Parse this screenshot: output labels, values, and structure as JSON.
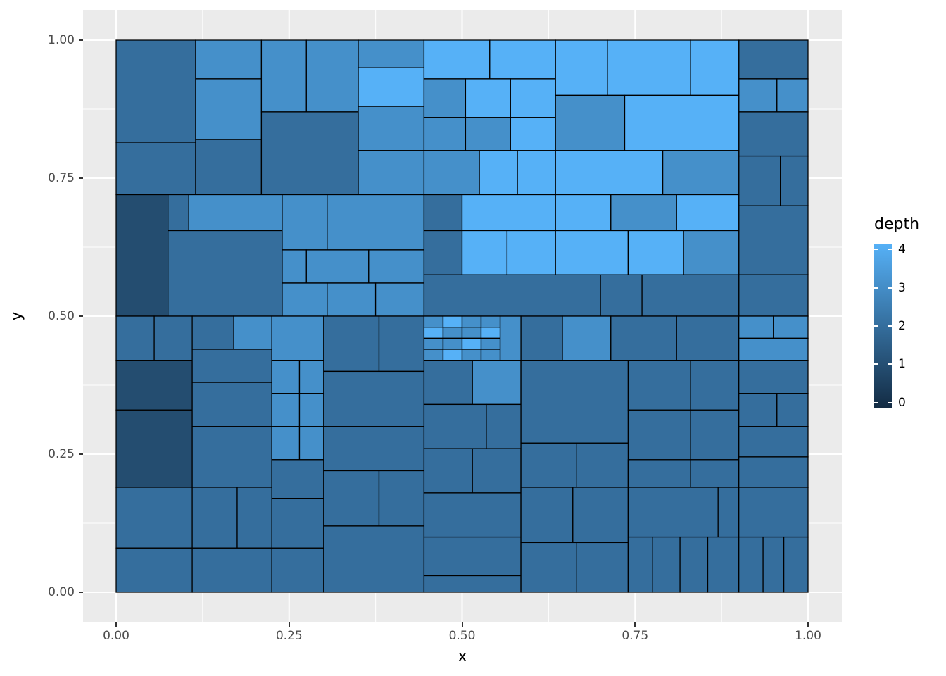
{
  "axes": {
    "x": {
      "title": "x",
      "tick_labels": [
        "0.00",
        "0.25",
        "0.50",
        "0.75",
        "1.00"
      ],
      "tick_values": [
        0,
        0.25,
        0.5,
        0.75,
        1
      ]
    },
    "y": {
      "title": "y",
      "tick_labels": [
        "0.00",
        "0.25",
        "0.50",
        "0.75",
        "1.00"
      ],
      "tick_values": [
        0,
        0.25,
        0.5,
        0.75,
        1
      ]
    }
  },
  "legend": {
    "title": "depth",
    "tick_labels": [
      "4",
      "3",
      "2",
      "1",
      "0"
    ],
    "tick_values": [
      4,
      3,
      2,
      1,
      0
    ]
  },
  "chart_data": {
    "type": "rect-partition",
    "description": "Recursive spatial partition (treemap-style) of the unit square; rectangles filled by continuous 'depth' value",
    "title": "",
    "xlabel": "x",
    "ylabel": "y",
    "x_range": [
      0,
      1
    ],
    "y_range": [
      0,
      1
    ],
    "fill_variable": "depth",
    "fill_scale": {
      "type": "gradient",
      "domain": [
        0,
        4
      ],
      "low": "#132B43",
      "high": "#56B1F7"
    },
    "layout": {
      "panel_bg": "#EBEBEB",
      "grid_major": "#FFFFFF",
      "grid_minor": "#FFFFFF",
      "grid": "on",
      "legend_position": "right",
      "rect_border": "#000000"
    },
    "minor_gridlines": [
      0.125,
      0.375,
      0.625,
      0.875
    ],
    "rect_format": [
      "x",
      "y",
      "width",
      "height",
      "depth"
    ],
    "rects": [
      [
        0,
        0.815,
        0.115,
        0.185,
        2
      ],
      [
        0,
        0.72,
        0.115,
        0.095,
        2
      ],
      [
        0.115,
        0.93,
        0.095,
        0.07,
        3
      ],
      [
        0.115,
        0.82,
        0.095,
        0.11,
        3
      ],
      [
        0.115,
        0.72,
        0.095,
        0.1,
        2
      ],
      [
        0.21,
        0.87,
        0.065,
        0.13,
        3
      ],
      [
        0.275,
        0.87,
        0.075,
        0.13,
        3
      ],
      [
        0.21,
        0.72,
        0.14,
        0.15,
        2
      ],
      [
        0.35,
        0.95,
        0.095,
        0.05,
        3
      ],
      [
        0.35,
        0.88,
        0.095,
        0.07,
        4
      ],
      [
        0.35,
        0.8,
        0.095,
        0.08,
        3
      ],
      [
        0.35,
        0.72,
        0.095,
        0.08,
        3
      ],
      [
        0,
        0.5,
        0.075,
        0.22,
        1
      ],
      [
        0.075,
        0.655,
        0.03,
        0.065,
        2
      ],
      [
        0.105,
        0.655,
        0.135,
        0.065,
        3
      ],
      [
        0.075,
        0.5,
        0.165,
        0.155,
        2
      ],
      [
        0.24,
        0.62,
        0.065,
        0.1,
        3
      ],
      [
        0.305,
        0.62,
        0.14,
        0.1,
        3
      ],
      [
        0.24,
        0.56,
        0.035,
        0.06,
        3
      ],
      [
        0.275,
        0.56,
        0.09,
        0.06,
        3
      ],
      [
        0.365,
        0.56,
        0.08,
        0.06,
        3
      ],
      [
        0.24,
        0.5,
        0.065,
        0.06,
        3
      ],
      [
        0.305,
        0.5,
        0.07,
        0.06,
        3
      ],
      [
        0.375,
        0.5,
        0.07,
        0.06,
        3
      ],
      [
        0.9,
        0.93,
        0.1,
        0.07,
        2
      ],
      [
        0.9,
        0.87,
        0.055,
        0.06,
        3
      ],
      [
        0.955,
        0.87,
        0.045,
        0.06,
        3
      ],
      [
        0.9,
        0.79,
        0.1,
        0.08,
        2
      ],
      [
        0.9,
        0.7,
        0.06,
        0.09,
        2
      ],
      [
        0.96,
        0.7,
        0.04,
        0.09,
        2
      ],
      [
        0.9,
        0.575,
        0.1,
        0.125,
        2
      ],
      [
        0.9,
        0.5,
        0.1,
        0.075,
        2
      ],
      [
        0.445,
        0.5,
        0.255,
        0.075,
        2
      ],
      [
        0.7,
        0.5,
        0.06,
        0.075,
        2
      ],
      [
        0.76,
        0.5,
        0.14,
        0.075,
        2
      ],
      [
        0.445,
        0.93,
        0.095,
        0.07,
        4
      ],
      [
        0.54,
        0.93,
        0.095,
        0.07,
        4
      ],
      [
        0.445,
        0.86,
        0.06,
        0.07,
        3
      ],
      [
        0.505,
        0.86,
        0.065,
        0.07,
        4
      ],
      [
        0.57,
        0.86,
        0.065,
        0.07,
        4
      ],
      [
        0.445,
        0.8,
        0.06,
        0.06,
        3
      ],
      [
        0.505,
        0.8,
        0.065,
        0.06,
        3
      ],
      [
        0.57,
        0.8,
        0.065,
        0.06,
        4
      ],
      [
        0.445,
        0.72,
        0.08,
        0.08,
        3
      ],
      [
        0.525,
        0.72,
        0.055,
        0.08,
        4
      ],
      [
        0.58,
        0.72,
        0.055,
        0.08,
        4
      ],
      [
        0.445,
        0.655,
        0.055,
        0.065,
        2
      ],
      [
        0.5,
        0.655,
        0.135,
        0.065,
        4
      ],
      [
        0.445,
        0.575,
        0.055,
        0.08,
        2
      ],
      [
        0.5,
        0.575,
        0.065,
        0.08,
        4
      ],
      [
        0.565,
        0.575,
        0.07,
        0.08,
        4
      ],
      [
        0.635,
        0.9,
        0.075,
        0.1,
        4
      ],
      [
        0.71,
        0.9,
        0.12,
        0.1,
        4
      ],
      [
        0.83,
        0.9,
        0.07,
        0.1,
        4
      ],
      [
        0.635,
        0.8,
        0.1,
        0.1,
        3
      ],
      [
        0.735,
        0.8,
        0.165,
        0.1,
        4
      ],
      [
        0.635,
        0.72,
        0.155,
        0.08,
        4
      ],
      [
        0.79,
        0.72,
        0.11,
        0.08,
        3
      ],
      [
        0.635,
        0.655,
        0.08,
        0.065,
        4
      ],
      [
        0.715,
        0.655,
        0.095,
        0.065,
        3
      ],
      [
        0.81,
        0.655,
        0.09,
        0.065,
        4
      ],
      [
        0.635,
        0.575,
        0.105,
        0.08,
        4
      ],
      [
        0.74,
        0.575,
        0.08,
        0.08,
        4
      ],
      [
        0.82,
        0.575,
        0.08,
        0.08,
        3
      ],
      [
        0,
        0.42,
        0.055,
        0.08,
        2
      ],
      [
        0.055,
        0.42,
        0.055,
        0.08,
        2
      ],
      [
        0,
        0.33,
        0.11,
        0.09,
        1
      ],
      [
        0,
        0.19,
        0.11,
        0.14,
        1
      ],
      [
        0,
        0.08,
        0.11,
        0.11,
        2
      ],
      [
        0,
        0,
        0.11,
        0.08,
        2
      ],
      [
        0.11,
        0.44,
        0.06,
        0.06,
        2
      ],
      [
        0.17,
        0.44,
        0.055,
        0.06,
        3
      ],
      [
        0.11,
        0.38,
        0.115,
        0.06,
        2
      ],
      [
        0.11,
        0.3,
        0.115,
        0.08,
        2
      ],
      [
        0.11,
        0.19,
        0.115,
        0.11,
        2
      ],
      [
        0.11,
        0.08,
        0.065,
        0.11,
        2
      ],
      [
        0.175,
        0.08,
        0.05,
        0.11,
        2
      ],
      [
        0.11,
        0,
        0.115,
        0.08,
        2
      ],
      [
        0.225,
        0.42,
        0.075,
        0.08,
        3
      ],
      [
        0.225,
        0.36,
        0.04,
        0.06,
        3
      ],
      [
        0.265,
        0.36,
        0.035,
        0.06,
        3
      ],
      [
        0.225,
        0.3,
        0.04,
        0.06,
        3
      ],
      [
        0.265,
        0.3,
        0.035,
        0.06,
        3
      ],
      [
        0.225,
        0.24,
        0.04,
        0.06,
        3
      ],
      [
        0.265,
        0.24,
        0.035,
        0.06,
        3
      ],
      [
        0.225,
        0.17,
        0.075,
        0.07,
        2
      ],
      [
        0.225,
        0.08,
        0.075,
        0.09,
        2
      ],
      [
        0.225,
        0,
        0.075,
        0.08,
        2
      ],
      [
        0.3,
        0.4,
        0.08,
        0.1,
        2
      ],
      [
        0.38,
        0.4,
        0.065,
        0.1,
        2
      ],
      [
        0.3,
        0.3,
        0.145,
        0.1,
        2
      ],
      [
        0.3,
        0.22,
        0.145,
        0.08,
        2
      ],
      [
        0.3,
        0.12,
        0.08,
        0.1,
        2
      ],
      [
        0.38,
        0.12,
        0.065,
        0.1,
        2
      ],
      [
        0.3,
        0,
        0.145,
        0.12,
        2
      ],
      [
        0.445,
        0.48,
        0.0275,
        0.02,
        3
      ],
      [
        0.4725,
        0.48,
        0.0275,
        0.02,
        4
      ],
      [
        0.5,
        0.48,
        0.0275,
        0.02,
        3
      ],
      [
        0.5275,
        0.48,
        0.0275,
        0.02,
        3
      ],
      [
        0.445,
        0.46,
        0.0275,
        0.02,
        4
      ],
      [
        0.4725,
        0.46,
        0.0275,
        0.02,
        3
      ],
      [
        0.5,
        0.46,
        0.0275,
        0.02,
        3
      ],
      [
        0.5275,
        0.46,
        0.0275,
        0.02,
        4
      ],
      [
        0.445,
        0.44,
        0.0275,
        0.02,
        3
      ],
      [
        0.4725,
        0.44,
        0.0275,
        0.02,
        3
      ],
      [
        0.5,
        0.44,
        0.0275,
        0.02,
        4
      ],
      [
        0.5275,
        0.44,
        0.0275,
        0.02,
        3
      ],
      [
        0.445,
        0.42,
        0.0275,
        0.02,
        3
      ],
      [
        0.4725,
        0.42,
        0.0275,
        0.02,
        4
      ],
      [
        0.5,
        0.42,
        0.0275,
        0.02,
        3
      ],
      [
        0.5275,
        0.42,
        0.0275,
        0.02,
        3
      ],
      [
        0.555,
        0.42,
        0.03,
        0.08,
        3
      ],
      [
        0.445,
        0.34,
        0.07,
        0.08,
        2
      ],
      [
        0.515,
        0.34,
        0.07,
        0.08,
        3
      ],
      [
        0.445,
        0.26,
        0.09,
        0.08,
        2
      ],
      [
        0.535,
        0.26,
        0.05,
        0.08,
        2
      ],
      [
        0.445,
        0.18,
        0.07,
        0.08,
        2
      ],
      [
        0.515,
        0.18,
        0.07,
        0.08,
        2
      ],
      [
        0.445,
        0.1,
        0.14,
        0.08,
        2
      ],
      [
        0.445,
        0.03,
        0.14,
        0.07,
        2
      ],
      [
        0.445,
        0,
        0.14,
        0.03,
        2
      ],
      [
        0.585,
        0.42,
        0.06,
        0.08,
        2
      ],
      [
        0.645,
        0.42,
        0.07,
        0.08,
        3
      ],
      [
        0.715,
        0.42,
        0.095,
        0.08,
        2
      ],
      [
        0.81,
        0.42,
        0.09,
        0.08,
        2
      ],
      [
        0.585,
        0.27,
        0.155,
        0.15,
        2
      ],
      [
        0.74,
        0.33,
        0.09,
        0.09,
        2
      ],
      [
        0.83,
        0.33,
        0.07,
        0.09,
        2
      ],
      [
        0.74,
        0.24,
        0.09,
        0.09,
        2
      ],
      [
        0.83,
        0.24,
        0.07,
        0.09,
        2
      ],
      [
        0.9,
        0.46,
        0.05,
        0.04,
        3
      ],
      [
        0.95,
        0.46,
        0.05,
        0.04,
        3
      ],
      [
        0.9,
        0.42,
        0.1,
        0.04,
        3
      ],
      [
        0.9,
        0.36,
        0.1,
        0.06,
        2
      ],
      [
        0.9,
        0.3,
        0.055,
        0.06,
        2
      ],
      [
        0.955,
        0.3,
        0.045,
        0.06,
        2
      ],
      [
        0.585,
        0.19,
        0.08,
        0.08,
        2
      ],
      [
        0.665,
        0.19,
        0.075,
        0.08,
        2
      ],
      [
        0.74,
        0.19,
        0.09,
        0.05,
        2
      ],
      [
        0.83,
        0.19,
        0.07,
        0.05,
        2
      ],
      [
        0.9,
        0.245,
        0.1,
        0.055,
        2
      ],
      [
        0.9,
        0.19,
        0.1,
        0.055,
        2
      ],
      [
        0.585,
        0.09,
        0.075,
        0.1,
        2
      ],
      [
        0.66,
        0.09,
        0.08,
        0.1,
        2
      ],
      [
        0.585,
        0,
        0.08,
        0.09,
        2
      ],
      [
        0.665,
        0,
        0.075,
        0.09,
        2
      ],
      [
        0.74,
        0.1,
        0.13,
        0.09,
        2
      ],
      [
        0.87,
        0.1,
        0.03,
        0.09,
        2
      ],
      [
        0.9,
        0.1,
        0.1,
        0.09,
        2
      ],
      [
        0.74,
        0,
        0.035,
        0.1,
        2
      ],
      [
        0.775,
        0,
        0.04,
        0.1,
        2
      ],
      [
        0.815,
        0,
        0.04,
        0.1,
        2
      ],
      [
        0.855,
        0,
        0.045,
        0.1,
        2
      ],
      [
        0.9,
        0,
        0.035,
        0.1,
        2
      ],
      [
        0.935,
        0,
        0.03,
        0.1,
        2
      ],
      [
        0.965,
        0,
        0.035,
        0.1,
        2
      ]
    ]
  }
}
